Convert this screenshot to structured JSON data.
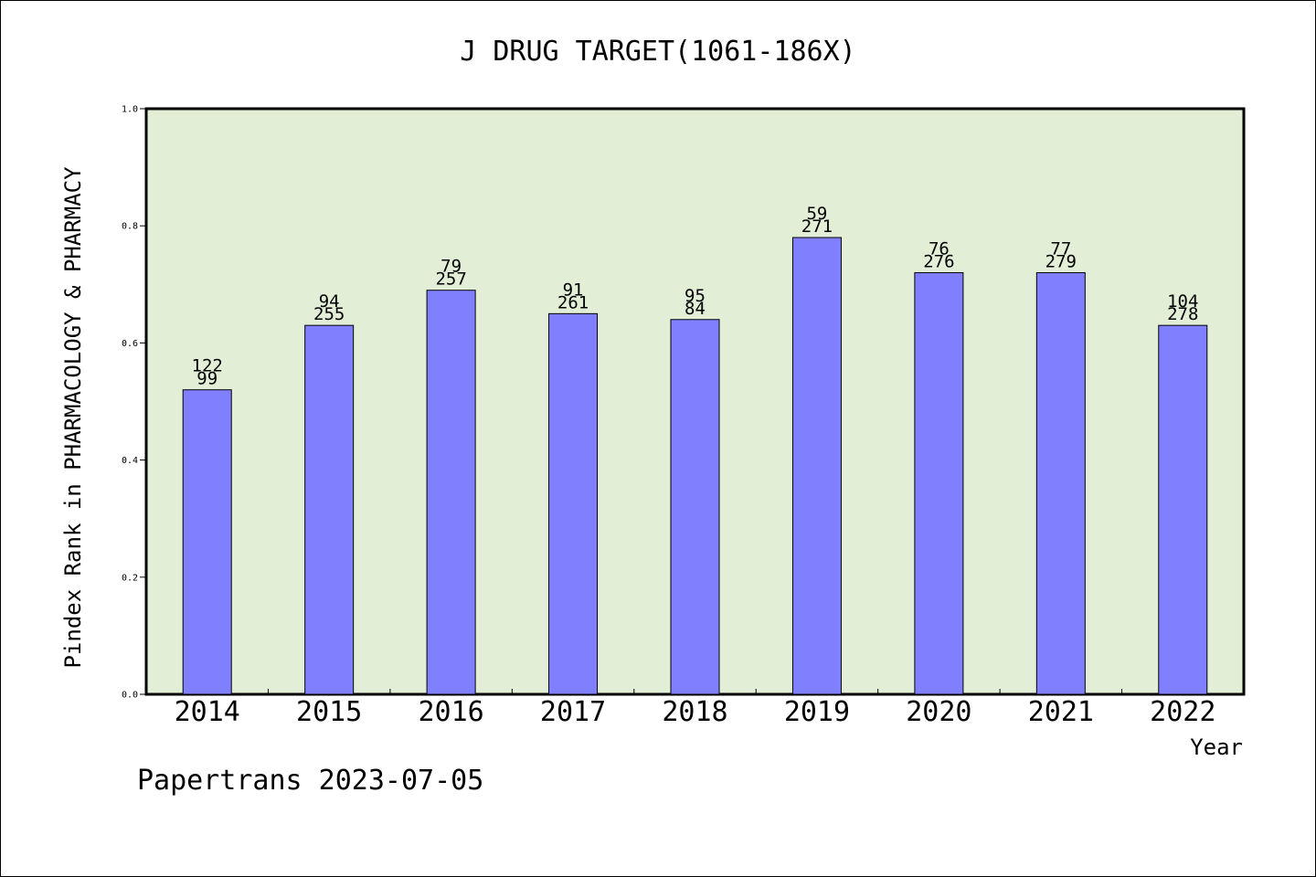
{
  "chart_data": {
    "type": "bar",
    "title": "J DRUG TARGET(1061-186X)",
    "xlabel": "Year",
    "ylabel": "Pindex Rank in PHARMACOLOGY & PHARMACY",
    "categories": [
      "2014",
      "2015",
      "2016",
      "2017",
      "2018",
      "2019",
      "2020",
      "2021",
      "2022"
    ],
    "values": [
      0.52,
      0.63,
      0.69,
      0.65,
      0.64,
      0.78,
      0.72,
      0.72,
      0.63
    ],
    "labels_top": [
      "122",
      "94",
      "79",
      "91",
      "95",
      "59",
      "76",
      "77",
      "104"
    ],
    "labels_bottom": [
      "99",
      "255",
      "257",
      "261",
      "84",
      "271",
      "276",
      "279",
      "278"
    ],
    "ylim": [
      0,
      1.0
    ],
    "yticks": [
      "0.0",
      "0.2",
      "0.4",
      "0.6",
      "0.8",
      "1.0"
    ],
    "grid": false,
    "colors": {
      "bar": "#8080ff",
      "plot_bg": "#e2efd6",
      "bar_edge": "#000000"
    }
  },
  "footer": "Papertrans 2023-07-05"
}
